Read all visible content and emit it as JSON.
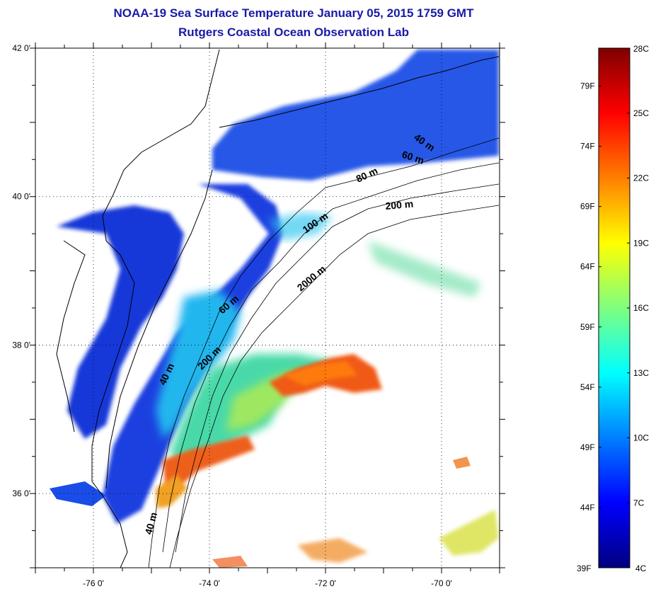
{
  "title_line1": "NOAA-19 Sea Surface Temperature January 05, 2015 1759 GMT",
  "title_line2": "Rutgers Coastal Ocean Observation Lab",
  "map": {
    "lon_range": [
      -77.0,
      -69.0
    ],
    "lat_range": [
      35.0,
      42.0
    ],
    "lat_tick_labels": [
      {
        "lat": 42,
        "label": "42 0'"
      },
      {
        "lat": 40,
        "label": "40 0'"
      },
      {
        "lat": 38,
        "label": "38 0'"
      },
      {
        "lat": 36,
        "label": "36 0'"
      }
    ],
    "lon_tick_labels": [
      {
        "lon": -76,
        "label": "-76 0'"
      },
      {
        "lon": -74,
        "label": "-74 0'"
      },
      {
        "lon": -72,
        "label": "-72 0'"
      },
      {
        "lon": -70,
        "label": "-70 0'"
      }
    ],
    "grid": "dotted"
  },
  "contour_labels": [
    "40 m",
    "60 m",
    "80 m",
    "200 m",
    "100 m",
    "2000 m",
    "60 m",
    "40 m",
    "200 m",
    "40 m"
  ],
  "colorbar": {
    "top_label": "28C",
    "bottom_left_label": "39F",
    "bottom_right_label": "4C",
    "fahrenheit_labels": [
      "79F",
      "74F",
      "69F",
      "64F",
      "59F",
      "54F",
      "49F",
      "44F"
    ],
    "celsius_labels": [
      "25C",
      "22C",
      "19C",
      "16C",
      "13C",
      "10C",
      "7C"
    ],
    "colors": [
      "#00007f",
      "#0000ff",
      "#007fff",
      "#00ffff",
      "#7fff7f",
      "#ffff00",
      "#ff7f00",
      "#ff0000",
      "#7f0000"
    ]
  }
}
